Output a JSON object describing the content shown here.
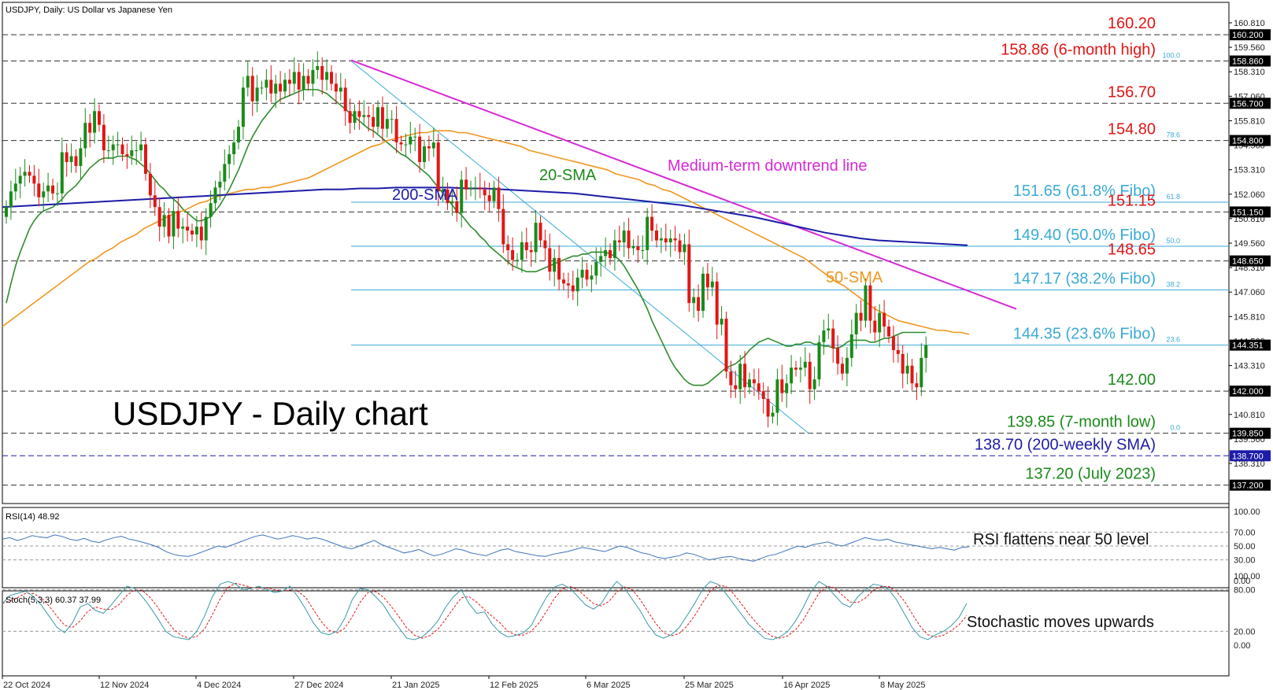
{
  "header": {
    "symbol_title": "USDJPY, Daily:  US Dollar vs Japanese Yen",
    "big_title": "USDJPY - Daily chart"
  },
  "colors": {
    "up": "#1a8a1a",
    "down": "#e21515",
    "sma20": "#2e8b2e",
    "sma50": "#f0961e",
    "sma200": "#1c1ca8",
    "trend": "#d829d8",
    "fibo": "#3aaad6",
    "level_red": "#e21515",
    "level_green": "#1a8a1a",
    "level_blue": "#1c1ca8",
    "stoch_main": "#3a9aa8",
    "stoch_signal": "#e21515",
    "rsi": "#3b73b8"
  },
  "chart_data": {
    "type": "candlestick",
    "price_axis": {
      "ticks": [
        "160.810",
        "159.560",
        "158.310",
        "157.060",
        "155.810",
        "154.560",
        "153.310",
        "152.060",
        "150.810",
        "149.560",
        "148.310",
        "147.060",
        "145.810",
        "144.560",
        "143.310",
        "142.060",
        "140.810",
        "139.560",
        "138.310"
      ],
      "tag_labels": [
        "160.200",
        "158.860",
        "156.700",
        "154.800",
        "151.150",
        "148.650",
        "144.351",
        "142.000",
        "139.850",
        "138.700",
        "137.200"
      ],
      "ylim": [
        136.9,
        161.5
      ]
    },
    "x_labels": [
      "22 Oct 2024",
      "12 Nov 2024",
      "4 Dec 2024",
      "27 Dec 2024",
      "21 Jan 2025",
      "12 Feb 2025",
      "6 Mar 2025",
      "25 Mar 2025",
      "16 Apr 2025",
      "8 May 2025"
    ],
    "closes": [
      151.4,
      152.2,
      152.6,
      153.0,
      153.2,
      153.0,
      152.6,
      151.9,
      152.2,
      152.5,
      152.1,
      152.1,
      154.2,
      153.7,
      154.0,
      153.5,
      154.4,
      155.7,
      155.2,
      156.3,
      155.6,
      154.3,
      154.3,
      154.6,
      154.6,
      154.1,
      154.0,
      154.3,
      154.3,
      154.6,
      153.1,
      152.0,
      151.4,
      150.4,
      151.0,
      149.9,
      151.2,
      150.3,
      150.4,
      150.2,
      150.0,
      150.4,
      149.7,
      150.9,
      151.6,
      152.4,
      152.7,
      153.6,
      154.1,
      154.7,
      155.5,
      157.5,
      158.1,
      156.8,
      157.5,
      157.5,
      157.9,
      157.2,
      157.7,
      157.3,
      157.9,
      157.7,
      158.3,
      157.4,
      158.1,
      157.7,
      158.4,
      158.6,
      157.9,
      158.3,
      157.7,
      157.3,
      157.5,
      156.3,
      155.7,
      156.3,
      156.0,
      156.1,
      156.0,
      155.5,
      156.5,
      155.4,
      155.9,
      155.9,
      154.7,
      154.6,
      154.6,
      155.0,
      155.0,
      153.7,
      154.5,
      154.4,
      154.7,
      152.2,
      152.3,
      151.6,
      151.7,
      151.1,
      152.8,
      152.3,
      152.4,
      152.4,
      152.3,
      152.0,
      151.7,
      152.4,
      151.3,
      149.5,
      149.2,
      148.7,
      148.7,
      149.6,
      149.2,
      149.1,
      150.6,
      149.7,
      149.3,
      148.1,
      148.8,
      147.7,
      147.5,
      147.4,
      147.1,
      147.8,
      148.2,
      147.7,
      147.9,
      148.6,
      148.9,
      149.2,
      148.8,
      149.7,
      149.6,
      150.2,
      149.3,
      149.4,
      149.2,
      149.2,
      150.9,
      150.2,
      149.7,
      149.8,
      149.6,
      149.8,
      149.7,
      149.1,
      149.5,
      146.5,
      146.8,
      146.1,
      148.0,
      147.3,
      147.6,
      145.4,
      145.7,
      143.0,
      142.3,
      142.1,
      143.4,
      142.2,
      142.6,
      142.4,
      142.0,
      141.6,
      140.7,
      140.9,
      142.6,
      141.9,
      142.4,
      143.2,
      143.1,
      143.2,
      143.5,
      142.1,
      142.6,
      144.5,
      145.1,
      145.2,
      144.2,
      143.4,
      142.9,
      143.7,
      144.9,
      146.0,
      145.6,
      147.4,
      145.6,
      145.0,
      146.0,
      145.3,
      144.8,
      144.1,
      143.9,
      142.9,
      143.3,
      142.4,
      142.2,
      143.7,
      144.35
    ],
    "series": [
      {
        "name": "20-SMA",
        "values": [
          146.5,
          147.5,
          148.4,
          149.1,
          149.7,
          150.3,
          150.7,
          151.0,
          151.2,
          151.3,
          151.4,
          151.6,
          151.8,
          152.1,
          152.3,
          152.5,
          152.8,
          153.1,
          153.4,
          153.6,
          153.8,
          153.9,
          153.9,
          153.9,
          154.0,
          154.0,
          154.0,
          153.9,
          153.8,
          153.6,
          153.4,
          153.1,
          152.8,
          152.5,
          152.3,
          152.0,
          151.8,
          151.6,
          151.3,
          151.1,
          150.9,
          150.7,
          150.7,
          150.8,
          150.9,
          151.2,
          151.5,
          151.9,
          152.3,
          152.8,
          153.3,
          153.9,
          154.5,
          155.0,
          155.4,
          155.8,
          156.1,
          156.4,
          156.7,
          156.9,
          157.0,
          157.1,
          157.2,
          157.3,
          157.4,
          157.4,
          157.4,
          157.4,
          157.3,
          157.2,
          157.0,
          156.8,
          156.6,
          156.4,
          156.2,
          156.0,
          155.8,
          155.6,
          155.4,
          155.3,
          155.1,
          154.9,
          154.7,
          154.5,
          154.3,
          154.1,
          154.0,
          153.8,
          153.6,
          153.4,
          153.2,
          153.0,
          152.7,
          152.4,
          152.1,
          151.8,
          151.5,
          151.2,
          151.0,
          150.7,
          150.4,
          150.2,
          149.9,
          149.7,
          149.4,
          149.2,
          149.0,
          148.8,
          148.6,
          148.4,
          148.3,
          148.2,
          148.1,
          148.1,
          148.1,
          148.2,
          148.3,
          148.4,
          148.5,
          148.6,
          148.7,
          148.8,
          148.9,
          148.9,
          149.0,
          149.0,
          149.1,
          149.1,
          149.1,
          149.1,
          149.0,
          148.9,
          148.7,
          148.4,
          148.0,
          147.6,
          147.2,
          146.7,
          146.2,
          145.6,
          145.1,
          144.6,
          144.1,
          143.6,
          143.2,
          142.9,
          142.6,
          142.4,
          142.3,
          142.3,
          142.3,
          142.4,
          142.6,
          142.8,
          143.0,
          143.2,
          143.3,
          143.4,
          143.6,
          143.8,
          144.1,
          144.3,
          144.5,
          144.6,
          144.7,
          144.6,
          144.5,
          144.4,
          144.3,
          144.3,
          144.4,
          144.4,
          144.5,
          144.5,
          144.4,
          144.4,
          144.3,
          144.3,
          144.2,
          144.2,
          144.3,
          144.5,
          144.6,
          144.6,
          144.6,
          144.6,
          144.5,
          144.5,
          144.6,
          144.7,
          144.7,
          144.8,
          144.9,
          145.0,
          145.0,
          145.0,
          145.0,
          145.0,
          145.0
        ]
      },
      {
        "name": "50-SMA",
        "values": [
          145.3,
          145.6,
          145.9,
          146.2,
          146.5,
          146.8,
          147.1,
          147.4,
          147.7,
          148.0,
          148.3,
          148.6,
          148.8,
          149.1,
          149.3,
          149.6,
          149.8,
          150.0,
          150.3,
          150.5,
          150.7,
          150.9,
          151.1,
          151.2,
          151.4,
          151.6,
          151.7,
          151.9,
          152.0,
          152.1,
          152.2,
          152.3,
          152.3,
          152.4,
          152.4,
          152.5,
          152.6,
          152.7,
          152.8,
          152.9,
          153.1,
          153.3,
          153.5,
          153.7,
          153.9,
          154.1,
          154.3,
          154.5,
          154.6,
          154.8,
          154.9,
          155.0,
          155.1,
          155.2,
          155.2,
          155.3,
          155.3,
          155.3,
          155.2,
          155.2,
          155.1,
          155.0,
          154.9,
          154.8,
          154.7,
          154.6,
          154.5,
          154.3,
          154.2,
          154.1,
          154.0,
          153.9,
          153.8,
          153.7,
          153.6,
          153.5,
          153.4,
          153.3,
          153.1,
          153.0,
          152.9,
          152.8,
          152.6,
          152.5,
          152.3,
          152.2,
          152.0,
          151.8,
          151.6,
          151.4,
          151.2,
          151.0,
          150.8,
          150.6,
          150.4,
          150.2,
          150.0,
          149.8,
          149.6,
          149.4,
          149.2,
          149.0,
          148.8,
          148.5,
          148.2,
          147.9,
          147.6,
          147.4,
          147.1,
          146.8,
          146.5,
          146.2,
          146.0,
          145.8,
          145.6,
          145.5,
          145.4,
          145.3,
          145.2,
          145.1,
          145.1,
          145.0,
          145.0,
          144.9
        ],
        "note_offset": 76
      },
      {
        "name": "200-SMA",
        "values": [
          151.4,
          151.45,
          151.5,
          151.55,
          151.6,
          151.65,
          151.7,
          151.75,
          151.8,
          151.85,
          151.9,
          151.95,
          152.0,
          152.05,
          152.1,
          152.15,
          152.2,
          152.25,
          152.3,
          152.3,
          152.35,
          152.35,
          152.4,
          152.4,
          152.4,
          152.4,
          152.35,
          152.35,
          152.3,
          152.25,
          152.2,
          152.15,
          152.1,
          152.0,
          151.9,
          151.8,
          151.7,
          151.6,
          151.5,
          151.35,
          151.2,
          151.05,
          150.9,
          150.7,
          150.5,
          150.3,
          150.1,
          149.95,
          149.8,
          149.7,
          149.65,
          149.6,
          149.55,
          149.5,
          149.45
        ]
      },
      {
        "name": "RSI(14)",
        "values": [
          60,
          62,
          58,
          61,
          65,
          63,
          62,
          66,
          64,
          60,
          58,
          61,
          57,
          55,
          59,
          62,
          64,
          60,
          58,
          55,
          52,
          48,
          42,
          38,
          36,
          35,
          38,
          42,
          46,
          50,
          48,
          52,
          56,
          60,
          64,
          66,
          63,
          60,
          62,
          65,
          63,
          60,
          62,
          60,
          56,
          52,
          48,
          46,
          50,
          54,
          58,
          52,
          48,
          44,
          40,
          42,
          45,
          40,
          36,
          38,
          42,
          46,
          44,
          40,
          38,
          36,
          40,
          44,
          46,
          42,
          40,
          38,
          36,
          35,
          38,
          40,
          42,
          45,
          48,
          46,
          44,
          42,
          46,
          50,
          48,
          44,
          40,
          38,
          34,
          32,
          34,
          36,
          40,
          38,
          34,
          30,
          32,
          34,
          35,
          32,
          30,
          28,
          32,
          36,
          38,
          42,
          46,
          50,
          48,
          52,
          54,
          56,
          52,
          50,
          54,
          58,
          62,
          60,
          58,
          60,
          56,
          54,
          52,
          50,
          48,
          46,
          48,
          46,
          44,
          48,
          48.9
        ]
      },
      {
        "name": "Stoch",
        "values": [
          60,
          72,
          75,
          78,
          70,
          58,
          42,
          26,
          18,
          32,
          55,
          60,
          50,
          46,
          58,
          72,
          85,
          82,
          70,
          55,
          38,
          20,
          12,
          10,
          8,
          20,
          42,
          70,
          88,
          92,
          88,
          80,
          82,
          85,
          80,
          76,
          78,
          85,
          70,
          52,
          32,
          18,
          15,
          20,
          38,
          66,
          82,
          80,
          70,
          58,
          40,
          25,
          10,
          8,
          12,
          22,
          35,
          55,
          70,
          80,
          60,
          46,
          48,
          30,
          18,
          12,
          14,
          18,
          28,
          50,
          70,
          84,
          88,
          82,
          70,
          58,
          52,
          60,
          78,
          92,
          82,
          66,
          50,
          30,
          15,
          10,
          15,
          25,
          42,
          60,
          80,
          92,
          88,
          75,
          60,
          45,
          30,
          20,
          10,
          8,
          12,
          20,
          35,
          55,
          78,
          92,
          85,
          72,
          60,
          55,
          70,
          80,
          88,
          86,
          80,
          65,
          45,
          25,
          12,
          8,
          15,
          20,
          28,
          40,
          60.37
        ],
        "signal_name": "signal",
        "signal_last": 37.99
      }
    ],
    "levels": [
      {
        "value": 160.2,
        "label": "160.20",
        "color": "red"
      },
      {
        "value": 158.86,
        "label": "158.86 (6-month high)",
        "color": "red"
      },
      {
        "value": 156.7,
        "label": "156.70",
        "color": "red"
      },
      {
        "value": 154.8,
        "label": "154.80",
        "color": "red"
      },
      {
        "value": 151.65,
        "label": "151.65 (61.8% Fibo)",
        "color": "fibo"
      },
      {
        "value": 151.15,
        "label": "151.15",
        "color": "red"
      },
      {
        "value": 149.4,
        "label": "149.40 (50.0% Fibo)",
        "color": "fibo"
      },
      {
        "value": 148.65,
        "label": "148.65",
        "color": "red"
      },
      {
        "value": 147.17,
        "label": "147.17 (38.2% Fibo)",
        "color": "fibo"
      },
      {
        "value": 144.35,
        "label": "144.35 (23.6% Fibo)",
        "color": "fibo"
      },
      {
        "value": 142.0,
        "label": "142.00",
        "color": "green"
      },
      {
        "value": 139.85,
        "label": "139.85 (7-month low)",
        "color": "green"
      },
      {
        "value": 138.7,
        "label": "138.70 (200-weekly SMA)",
        "color": "blue"
      },
      {
        "value": 137.2,
        "label": "137.20 (July 2023)",
        "color": "green"
      }
    ],
    "fibo_ratios": [
      "100.0",
      "78.6",
      "61.8",
      "50.0",
      "38.2",
      "23.6",
      "0.0"
    ],
    "annotations": {
      "trend_label": "Medium-term downtrend line",
      "sma20_label": "20-SMA",
      "sma50_label": "50-SMA",
      "sma200_label": "200-SMA"
    },
    "rsi": {
      "title": "RSI(14) 48.92",
      "ticks": [
        "100.00",
        "70.00",
        "50.00",
        "30.00",
        "0.00"
      ],
      "note": "RSI flattens near 50 level"
    },
    "stoch": {
      "title": "Stoch(5,3,3) 60.37 37.99",
      "ticks": [
        "100.00",
        "80.00",
        "20.00",
        "0.00"
      ],
      "note": "Stochastic moves upwards"
    }
  }
}
